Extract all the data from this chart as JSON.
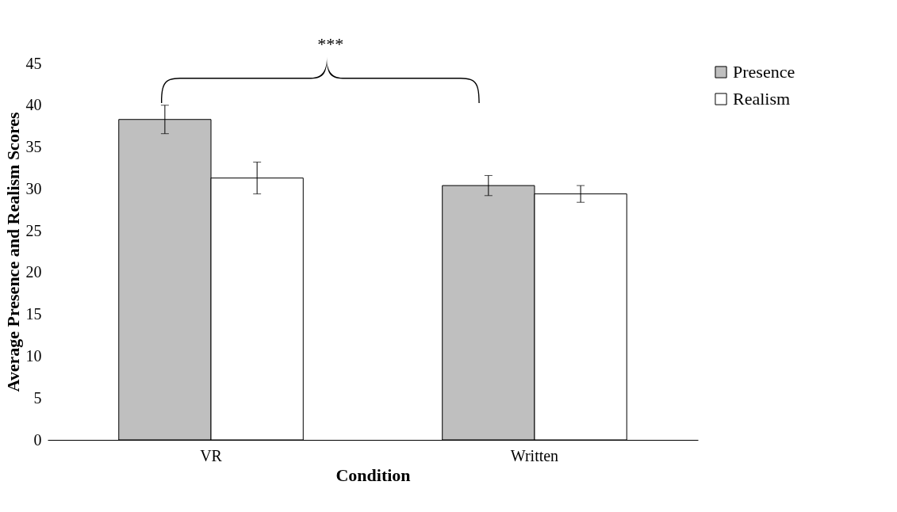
{
  "chart_data": {
    "type": "bar",
    "xlabel": "Condition",
    "ylabel": "Average Presence and Realism Scores",
    "categories": [
      "VR",
      "Written"
    ],
    "series": [
      {
        "name": "Presence",
        "color": "#bfbfbf",
        "values": [
          38.3,
          30.4
        ],
        "errors": [
          1.7,
          1.2
        ]
      },
      {
        "name": "Realism",
        "color": "#ffffff",
        "values": [
          31.3,
          29.4
        ],
        "errors": [
          1.9,
          1.0
        ]
      }
    ],
    "ylim": [
      0,
      45
    ],
    "yticks": [
      0,
      5,
      10,
      15,
      20,
      25,
      30,
      35,
      40,
      45
    ],
    "grid": false,
    "legend": "right",
    "annotations": [
      "***"
    ]
  }
}
